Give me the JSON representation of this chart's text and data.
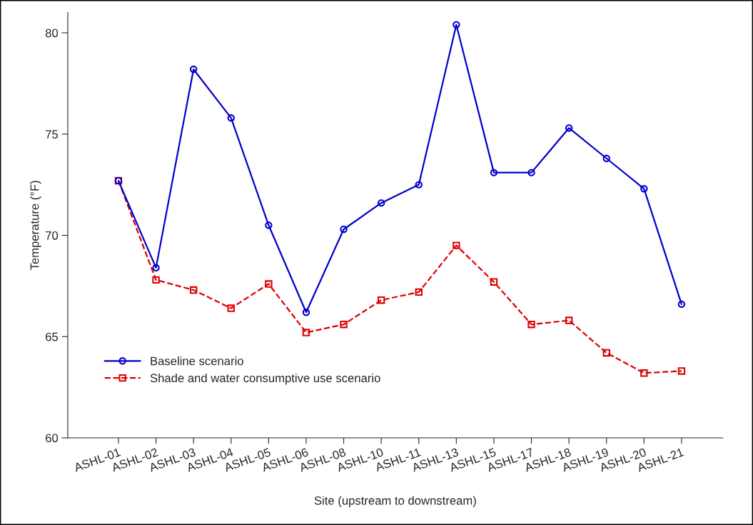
{
  "chart_data": {
    "type": "line",
    "xlabel": "Site (upstream to downstream)",
    "ylabel": "Temperature (°F)",
    "categories": [
      "ASHL-01",
      "ASHL-02",
      "ASHL-03",
      "ASHL-04",
      "ASHL-05",
      "ASHL-06",
      "ASHL-08",
      "ASHL-10",
      "ASHL-11",
      "ASHL-13",
      "ASHL-15",
      "ASHL-17",
      "ASHL-18",
      "ASHL-19",
      "ASHL-20",
      "ASHL-21"
    ],
    "series": [
      {
        "name": "Baseline scenario",
        "color": "#0000cc",
        "marker": "circle",
        "line_style": "solid",
        "values": [
          72.7,
          68.4,
          78.2,
          75.8,
          70.5,
          66.2,
          70.3,
          71.6,
          72.5,
          80.4,
          73.1,
          73.1,
          75.3,
          73.8,
          72.3,
          66.6
        ]
      },
      {
        "name": "Shade and water consumptive use scenario",
        "color": "#dd0000",
        "marker": "square",
        "line_style": "dashed",
        "values": [
          72.7,
          67.8,
          67.3,
          66.4,
          67.6,
          65.2,
          65.6,
          66.8,
          67.2,
          69.5,
          67.7,
          65.6,
          65.8,
          64.2,
          63.2,
          63.3
        ]
      }
    ],
    "ylim": [
      60,
      81
    ],
    "yticks": [
      60,
      65,
      70,
      75,
      80
    ],
    "grid": false,
    "legend": "bottom left"
  }
}
